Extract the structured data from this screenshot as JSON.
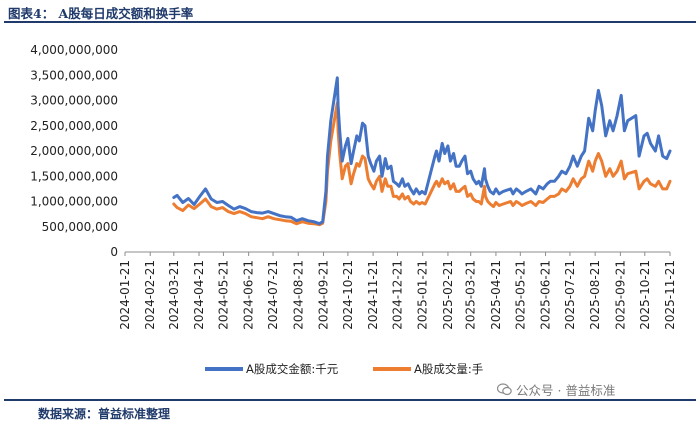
{
  "header": {
    "title": "图表4：  A股每日成交额和换手率"
  },
  "footer": {
    "source": "数据来源：普益标准整理"
  },
  "watermark": {
    "text": "公众号 · 普益标准",
    "icon": "wechat-bubble-icon"
  },
  "chart_data": {
    "type": "line",
    "title": "",
    "xlabel": "",
    "ylabel": "",
    "ylim": [
      0,
      4000000000
    ],
    "yticks": [
      0,
      500000000,
      1000000000,
      1500000000,
      2000000000,
      2500000000,
      3000000000,
      3500000000,
      4000000000
    ],
    "ytick_labels": [
      "0",
      "500,000,000",
      "1,000,000,000",
      "1,500,000,000",
      "2,000,000,000",
      "2,500,000,000",
      "3,000,000,000",
      "3,500,000,000",
      "4,000,000,000"
    ],
    "xlim": [
      "2024-01-21",
      "2025-11-21"
    ],
    "xtick_labels": [
      "2024-01-21",
      "2024-02-21",
      "2024-03-21",
      "2024-04-21",
      "2024-05-21",
      "2024-06-21",
      "2024-07-21",
      "2024-08-21",
      "2024-09-21",
      "2024-10-21",
      "2024-11-21",
      "2024-12-21",
      "2025-01-21",
      "2025-02-21",
      "2025-03-21",
      "2025-04-21",
      "2025-05-21",
      "2025-06-21",
      "2025-07-21",
      "2025-08-21",
      "2025-09-21",
      "2025-10-21",
      "2025-11-21"
    ],
    "grid": false,
    "legend_position": "bottom",
    "series": [
      {
        "name": "A股成交金额:千元",
        "color": "#4472c4",
        "x": [
          "2024-03-21",
          "2024-03-25",
          "2024-04-01",
          "2024-04-08",
          "2024-04-15",
          "2024-04-22",
          "2024-04-29",
          "2024-05-06",
          "2024-05-13",
          "2024-05-20",
          "2024-05-27",
          "2024-06-03",
          "2024-06-10",
          "2024-06-17",
          "2024-06-24",
          "2024-07-01",
          "2024-07-08",
          "2024-07-15",
          "2024-07-22",
          "2024-07-29",
          "2024-08-05",
          "2024-08-12",
          "2024-08-19",
          "2024-08-26",
          "2024-09-02",
          "2024-09-09",
          "2024-09-16",
          "2024-09-20",
          "2024-09-24",
          "2024-09-26",
          "2024-09-30",
          "2024-10-08",
          "2024-10-09",
          "2024-10-11",
          "2024-10-14",
          "2024-10-18",
          "2024-10-21",
          "2024-10-25",
          "2024-10-28",
          "2024-11-01",
          "2024-11-04",
          "2024-11-08",
          "2024-11-11",
          "2024-11-15",
          "2024-11-18",
          "2024-11-22",
          "2024-11-25",
          "2024-11-29",
          "2024-12-02",
          "2024-12-06",
          "2024-12-09",
          "2024-12-13",
          "2024-12-16",
          "2024-12-20",
          "2024-12-23",
          "2024-12-27",
          "2024-12-30",
          "2025-01-03",
          "2025-01-06",
          "2025-01-10",
          "2025-01-13",
          "2025-01-17",
          "2025-01-20",
          "2025-01-24",
          "2025-02-05",
          "2025-02-07",
          "2025-02-10",
          "2025-02-14",
          "2025-02-17",
          "2025-02-21",
          "2025-02-24",
          "2025-02-28",
          "2025-03-03",
          "2025-03-07",
          "2025-03-10",
          "2025-03-14",
          "2025-03-17",
          "2025-03-21",
          "2025-03-24",
          "2025-03-28",
          "2025-03-31",
          "2025-04-03",
          "2025-04-07",
          "2025-04-08",
          "2025-04-11",
          "2025-04-14",
          "2025-04-18",
          "2025-04-21",
          "2025-04-25",
          "2025-04-30",
          "2025-05-09",
          "2025-05-12",
          "2025-05-16",
          "2025-05-20",
          "2025-05-23",
          "2025-05-28",
          "2025-06-03",
          "2025-06-09",
          "2025-06-13",
          "2025-06-18",
          "2025-06-23",
          "2025-06-27",
          "2025-07-02",
          "2025-07-07",
          "2025-07-11",
          "2025-07-16",
          "2025-07-21",
          "2025-07-25",
          "2025-07-30",
          "2025-08-04",
          "2025-08-08",
          "2025-08-13",
          "2025-08-18",
          "2025-08-21",
          "2025-08-25",
          "2025-08-29",
          "2025-09-03",
          "2025-09-08",
          "2025-09-12",
          "2025-09-17",
          "2025-09-22",
          "2025-09-26",
          "2025-09-30",
          "2025-10-10",
          "2025-10-14",
          "2025-10-20",
          "2025-10-24",
          "2025-10-28",
          "2025-11-03",
          "2025-11-07",
          "2025-11-12",
          "2025-11-17",
          "2025-11-21"
        ],
        "values": [
          1080000000,
          1120000000,
          980000000,
          1060000000,
          940000000,
          1100000000,
          1250000000,
          1050000000,
          980000000,
          1000000000,
          920000000,
          850000000,
          900000000,
          860000000,
          800000000,
          780000000,
          770000000,
          800000000,
          760000000,
          720000000,
          700000000,
          690000000,
          620000000,
          660000000,
          620000000,
          600000000,
          560000000,
          600000000,
          1200000000,
          1900000000,
          2600000000,
          3450000000,
          2900000000,
          2400000000,
          1800000000,
          2100000000,
          2250000000,
          1750000000,
          2000000000,
          2300000000,
          2200000000,
          2550000000,
          2500000000,
          1900000000,
          1750000000,
          1600000000,
          1800000000,
          1900000000,
          1500000000,
          1850000000,
          1650000000,
          1700000000,
          1400000000,
          1350000000,
          1300000000,
          1450000000,
          1300000000,
          1350000000,
          1250000000,
          1150000000,
          1250000000,
          1150000000,
          1200000000,
          1150000000,
          1900000000,
          2000000000,
          1800000000,
          2150000000,
          1950000000,
          2100000000,
          1800000000,
          1950000000,
          1700000000,
          1700000000,
          1800000000,
          1900000000,
          1550000000,
          1600000000,
          1450000000,
          1350000000,
          1400000000,
          1300000000,
          1650000000,
          1450000000,
          1300000000,
          1200000000,
          1150000000,
          1250000000,
          1150000000,
          1200000000,
          1250000000,
          1150000000,
          1250000000,
          1200000000,
          1150000000,
          1200000000,
          1250000000,
          1150000000,
          1300000000,
          1250000000,
          1350000000,
          1400000000,
          1400000000,
          1500000000,
          1600000000,
          1550000000,
          1700000000,
          1900000000,
          1700000000,
          1900000000,
          2000000000,
          2650000000,
          2400000000,
          2800000000,
          3200000000,
          2900000000,
          2300000000,
          2600000000,
          2400000000,
          2700000000,
          3100000000,
          2400000000,
          2600000000,
          2700000000,
          1900000000,
          2300000000,
          2350000000,
          2150000000,
          2000000000,
          2300000000,
          1900000000,
          1850000000,
          2000000000
        ]
      },
      {
        "name": "A股成交量:手",
        "color": "#ed7d31",
        "x": [
          "2024-03-21",
          "2024-03-25",
          "2024-04-01",
          "2024-04-08",
          "2024-04-15",
          "2024-04-22",
          "2024-04-29",
          "2024-05-06",
          "2024-05-13",
          "2024-05-20",
          "2024-05-27",
          "2024-06-03",
          "2024-06-10",
          "2024-06-17",
          "2024-06-24",
          "2024-07-01",
          "2024-07-08",
          "2024-07-15",
          "2024-07-22",
          "2024-07-29",
          "2024-08-05",
          "2024-08-12",
          "2024-08-19",
          "2024-08-26",
          "2024-09-02",
          "2024-09-09",
          "2024-09-16",
          "2024-09-20",
          "2024-09-24",
          "2024-09-26",
          "2024-09-30",
          "2024-10-08",
          "2024-10-09",
          "2024-10-11",
          "2024-10-14",
          "2024-10-18",
          "2024-10-21",
          "2024-10-25",
          "2024-10-28",
          "2024-11-01",
          "2024-11-04",
          "2024-11-08",
          "2024-11-11",
          "2024-11-15",
          "2024-11-18",
          "2024-11-22",
          "2024-11-25",
          "2024-11-29",
          "2024-12-02",
          "2024-12-06",
          "2024-12-09",
          "2024-12-13",
          "2024-12-16",
          "2024-12-20",
          "2024-12-23",
          "2024-12-27",
          "2024-12-30",
          "2025-01-03",
          "2025-01-06",
          "2025-01-10",
          "2025-01-13",
          "2025-01-17",
          "2025-01-20",
          "2025-01-24",
          "2025-02-05",
          "2025-02-07",
          "2025-02-10",
          "2025-02-14",
          "2025-02-17",
          "2025-02-21",
          "2025-02-24",
          "2025-02-28",
          "2025-03-03",
          "2025-03-07",
          "2025-03-10",
          "2025-03-14",
          "2025-03-17",
          "2025-03-21",
          "2025-03-24",
          "2025-03-28",
          "2025-03-31",
          "2025-04-03",
          "2025-04-07",
          "2025-04-08",
          "2025-04-11",
          "2025-04-14",
          "2025-04-18",
          "2025-04-21",
          "2025-04-25",
          "2025-04-30",
          "2025-05-09",
          "2025-05-12",
          "2025-05-16",
          "2025-05-20",
          "2025-05-23",
          "2025-05-28",
          "2025-06-03",
          "2025-06-09",
          "2025-06-13",
          "2025-06-18",
          "2025-06-23",
          "2025-06-27",
          "2025-07-02",
          "2025-07-07",
          "2025-07-11",
          "2025-07-16",
          "2025-07-21",
          "2025-07-25",
          "2025-07-30",
          "2025-08-04",
          "2025-08-08",
          "2025-08-13",
          "2025-08-18",
          "2025-08-21",
          "2025-08-25",
          "2025-08-29",
          "2025-09-03",
          "2025-09-08",
          "2025-09-12",
          "2025-09-17",
          "2025-09-22",
          "2025-09-26",
          "2025-09-30",
          "2025-10-10",
          "2025-10-14",
          "2025-10-20",
          "2025-10-24",
          "2025-10-28",
          "2025-11-03",
          "2025-11-07",
          "2025-11-12",
          "2025-11-17",
          "2025-11-21"
        ],
        "values": [
          950000000,
          880000000,
          820000000,
          930000000,
          860000000,
          950000000,
          1050000000,
          900000000,
          850000000,
          880000000,
          800000000,
          760000000,
          800000000,
          760000000,
          700000000,
          680000000,
          660000000,
          700000000,
          660000000,
          640000000,
          620000000,
          610000000,
          560000000,
          600000000,
          570000000,
          560000000,
          540000000,
          570000000,
          1000000000,
          1600000000,
          2200000000,
          2950000000,
          2400000000,
          1950000000,
          1450000000,
          1700000000,
          1750000000,
          1350000000,
          1550000000,
          1750000000,
          1700000000,
          1900000000,
          1850000000,
          1450000000,
          1350000000,
          1250000000,
          1400000000,
          1500000000,
          1200000000,
          1450000000,
          1300000000,
          1300000000,
          1100000000,
          1100000000,
          1050000000,
          1150000000,
          1050000000,
          1100000000,
          1000000000,
          950000000,
          1000000000,
          950000000,
          980000000,
          950000000,
          1350000000,
          1400000000,
          1300000000,
          1450000000,
          1350000000,
          1400000000,
          1250000000,
          1350000000,
          1200000000,
          1200000000,
          1250000000,
          1300000000,
          1100000000,
          1150000000,
          1050000000,
          1000000000,
          1000000000,
          950000000,
          1300000000,
          1100000000,
          1000000000,
          950000000,
          900000000,
          980000000,
          920000000,
          950000000,
          1000000000,
          920000000,
          1000000000,
          960000000,
          920000000,
          960000000,
          1000000000,
          920000000,
          1000000000,
          980000000,
          1050000000,
          1100000000,
          1100000000,
          1150000000,
          1250000000,
          1200000000,
          1300000000,
          1450000000,
          1300000000,
          1450000000,
          1500000000,
          1800000000,
          1600000000,
          1800000000,
          1950000000,
          1800000000,
          1500000000,
          1650000000,
          1500000000,
          1600000000,
          1800000000,
          1450000000,
          1550000000,
          1600000000,
          1250000000,
          1400000000,
          1450000000,
          1350000000,
          1300000000,
          1400000000,
          1250000000,
          1250000000,
          1400000000
        ]
      }
    ]
  }
}
